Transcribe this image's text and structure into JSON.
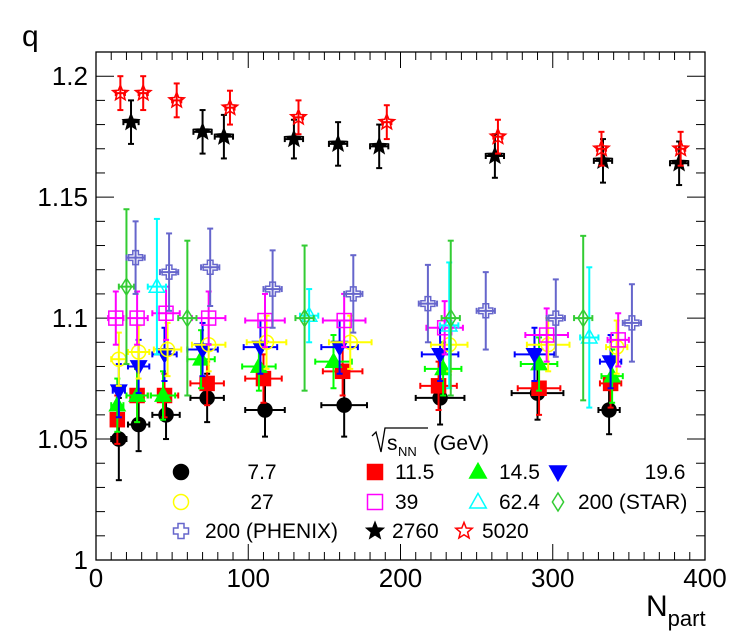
{
  "chart_data": {
    "type": "scatter",
    "xlabel": "N",
    "xlabel_sub": "part",
    "ylabel": "q",
    "xlim": [
      0,
      400
    ],
    "ylim": [
      1.0,
      1.21
    ],
    "x_ticks": [
      0,
      100,
      200,
      300,
      400
    ],
    "x_tick_labels": [
      "0",
      "100",
      "200",
      "300",
      "400"
    ],
    "y_ticks": [
      1.0,
      1.05,
      1.1,
      1.15,
      1.2
    ],
    "y_tick_labels": [
      "1",
      "1.05",
      "1.1",
      "1.15",
      "1.2"
    ],
    "legend_title": "(GeV)",
    "legend_title_sqrt": "s",
    "legend_title_sub": "NN",
    "legend_position": "bottom-center",
    "series": [
      {
        "name": "7.7",
        "color": "#000000",
        "marker": "circle",
        "fill": true,
        "points": [
          [
            15,
            1.05,
            0.017,
            5
          ],
          [
            28,
            1.056,
            0.011,
            7
          ],
          [
            46,
            1.06,
            0.01,
            9
          ],
          [
            73,
            1.067,
            0.01,
            11
          ],
          [
            111,
            1.062,
            0.011,
            13
          ],
          [
            163,
            1.064,
            0.013,
            15
          ],
          [
            226,
            1.067,
            0.011,
            16
          ],
          [
            290,
            1.069,
            0.011,
            17
          ],
          [
            337,
            1.062,
            0.01,
            7
          ]
        ]
      },
      {
        "name": "11.5",
        "color": "#ff0000",
        "marker": "square",
        "fill": true,
        "points": [
          [
            14,
            1.058,
            0.01,
            4
          ],
          [
            27,
            1.068,
            0.011,
            7
          ],
          [
            45,
            1.068,
            0.009,
            9
          ],
          [
            73,
            1.073,
            0.009,
            11
          ],
          [
            110,
            1.075,
            0.01,
            12
          ],
          [
            162,
            1.078,
            0.01,
            13
          ],
          [
            225,
            1.072,
            0.01,
            12
          ],
          [
            291,
            1.071,
            0.011,
            14
          ],
          [
            338,
            1.073,
            0.01,
            7
          ]
        ]
      },
      {
        "name": "14.5",
        "color": "#00ff00",
        "marker": "triangle-up",
        "fill": true,
        "points": [
          [
            14,
            1.064,
            0.011,
            4
          ],
          [
            27,
            1.068,
            0.011,
            7
          ],
          [
            44,
            1.068,
            0.01,
            8
          ],
          [
            69,
            1.083,
            0.012,
            9
          ],
          [
            107,
            1.08,
            0.01,
            11
          ],
          [
            156,
            1.082,
            0.011,
            12
          ],
          [
            228,
            1.079,
            0.011,
            12
          ],
          [
            291,
            1.081,
            0.011,
            12
          ],
          [
            339,
            1.076,
            0.011,
            7
          ]
        ]
      },
      {
        "name": "19.6",
        "color": "#0000ff",
        "marker": "triangle-down",
        "fill": true,
        "points": [
          [
            15,
            1.07,
            0.011,
            4
          ],
          [
            28,
            1.08,
            0.011,
            7
          ],
          [
            45,
            1.085,
            0.011,
            8
          ],
          [
            70,
            1.087,
            0.011,
            10
          ],
          [
            108,
            1.088,
            0.011,
            11
          ],
          [
            160,
            1.088,
            0.011,
            12
          ],
          [
            226,
            1.085,
            0.011,
            12
          ],
          [
            288,
            1.085,
            0.011,
            13
          ],
          [
            338,
            1.082,
            0.011,
            7
          ]
        ]
      },
      {
        "name": "27",
        "color": "#ffff00",
        "marker": "circle",
        "fill": false,
        "points": [
          [
            15,
            1.083,
            0.011,
            5
          ],
          [
            28,
            1.086,
            0.011,
            7
          ],
          [
            47,
            1.087,
            0.011,
            9
          ],
          [
            74,
            1.089,
            0.011,
            11
          ],
          [
            112,
            1.09,
            0.011,
            13
          ],
          [
            167,
            1.09,
            0.011,
            14
          ],
          [
            232,
            1.089,
            0.011,
            12
          ],
          [
            297,
            1.089,
            0.011,
            14
          ],
          [
            342,
            1.088,
            0.011,
            7
          ]
        ]
      },
      {
        "name": "39",
        "color": "#ff00ff",
        "marker": "square",
        "fill": false,
        "points": [
          [
            13,
            1.1,
            0.011,
            5
          ],
          [
            27,
            1.1,
            0.011,
            7
          ],
          [
            46,
            1.102,
            0.011,
            9
          ],
          [
            74,
            1.1,
            0.011,
            11
          ],
          [
            111,
            1.099,
            0.011,
            13
          ],
          [
            163,
            1.099,
            0.011,
            14
          ],
          [
            229,
            1.096,
            0.011,
            12
          ],
          [
            296,
            1.093,
            0.011,
            14
          ],
          [
            343,
            1.091,
            0.011,
            7
          ]
        ]
      },
      {
        "name": "62.4",
        "color": "#00ffff",
        "marker": "triangle-up",
        "fill": false,
        "points": [
          [
            40,
            1.113,
            0.028,
            6
          ],
          [
            140,
            1.101,
            0.011,
            6
          ],
          [
            232,
            1.097,
            0.026,
            6
          ],
          [
            324,
            1.092,
            0.029,
            6
          ]
        ]
      },
      {
        "name": "200 (STAR)",
        "color": "#33cc33",
        "marker": "diamond",
        "fill": false,
        "points": [
          [
            20,
            1.113,
            0.032,
            5
          ],
          [
            60,
            1.1,
            0.032,
            6
          ],
          [
            137,
            1.1,
            0.03,
            6
          ],
          [
            233,
            1.1,
            0.032,
            6
          ],
          [
            320,
            1.1,
            0.034,
            6
          ]
        ]
      },
      {
        "name": "200 (PHENIX)",
        "color": "#6666cc",
        "marker": "cross",
        "fill": false,
        "points": [
          [
            26,
            1.125,
            0.015,
            6
          ],
          [
            48,
            1.119,
            0.016,
            6
          ],
          [
            75,
            1.121,
            0.016,
            6
          ],
          [
            116,
            1.112,
            0.016,
            6
          ],
          [
            169,
            1.11,
            0.016,
            6
          ],
          [
            218,
            1.106,
            0.016,
            6
          ],
          [
            256,
            1.103,
            0.016,
            6
          ],
          [
            302,
            1.1,
            0.016,
            6
          ],
          [
            352,
            1.098,
            0.016,
            6
          ]
        ]
      },
      {
        "name": "2760",
        "color": "#000000",
        "marker": "star",
        "fill": true,
        "points": [
          [
            23,
            1.181,
            0.009,
            5
          ],
          [
            70,
            1.177,
            0.009,
            6
          ],
          [
            84,
            1.175,
            0.009,
            6
          ],
          [
            130,
            1.174,
            0.008,
            6
          ],
          [
            159,
            1.172,
            0.009,
            6
          ],
          [
            186,
            1.171,
            0.009,
            6
          ],
          [
            262,
            1.167,
            0.009,
            6
          ],
          [
            333,
            1.165,
            0.009,
            6
          ],
          [
            383,
            1.164,
            0.009,
            6
          ]
        ]
      },
      {
        "name": "5020",
        "color": "#ff0000",
        "marker": "star",
        "fill": false,
        "points": [
          [
            16,
            1.193,
            0.007,
            3
          ],
          [
            31,
            1.193,
            0.007,
            3
          ],
          [
            53,
            1.19,
            0.007,
            3
          ],
          [
            88,
            1.187,
            0.007,
            3
          ],
          [
            133,
            1.183,
            0.007,
            3
          ],
          [
            191,
            1.181,
            0.007,
            3
          ],
          [
            264,
            1.175,
            0.007,
            3
          ],
          [
            332,
            1.17,
            0.007,
            3
          ],
          [
            384,
            1.17,
            0.007,
            3
          ]
        ]
      }
    ]
  }
}
